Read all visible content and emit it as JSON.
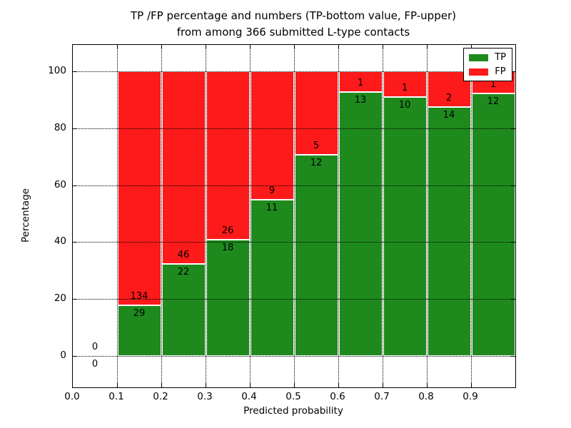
{
  "figure": {
    "title_line1": "TP /FP percentage and numbers (TP-bottom value, FP-upper)",
    "title_line2": "from among 366 submitted L-type contacts"
  },
  "chart_data": {
    "type": "bar",
    "stacked": true,
    "title": "TP /FP percentage and numbers (TP-bottom value, FP-upper) from among 366 submitted L-type contacts",
    "xlabel": "Predicted probability",
    "ylabel": "Percentage",
    "xlim": [
      0.0,
      1.0
    ],
    "ylim": [
      -11,
      109
    ],
    "grid": true,
    "legend_position": "upper right",
    "x_tick_labels": [
      "0.0",
      "0.1",
      "0.2",
      "0.3",
      "0.4",
      "0.5",
      "0.6",
      "0.7",
      "0.8",
      "0.9"
    ],
    "y_tick_labels": [
      "0",
      "20",
      "40",
      "60",
      "80",
      "100"
    ],
    "colors": {
      "tp": "#1e8a1e",
      "fp": "#fc1a1a",
      "grid": "#000000",
      "bar_edge": "#ffffff"
    },
    "legend": [
      {
        "label": "TP",
        "color": "#1e8a1e"
      },
      {
        "label": "FP",
        "color": "#fc1a1a"
      }
    ],
    "total_contacts": 366,
    "bins": [
      {
        "range": [
          0.0,
          0.1
        ],
        "tp": 0,
        "fp": 0,
        "tp_pct": 0.0,
        "fp_pct": 0.0
      },
      {
        "range": [
          0.1,
          0.2
        ],
        "tp": 29,
        "fp": 134,
        "tp_pct": 17.79,
        "fp_pct": 82.21
      },
      {
        "range": [
          0.2,
          0.3
        ],
        "tp": 22,
        "fp": 46,
        "tp_pct": 32.35,
        "fp_pct": 67.65
      },
      {
        "range": [
          0.3,
          0.4
        ],
        "tp": 18,
        "fp": 26,
        "tp_pct": 40.91,
        "fp_pct": 59.09
      },
      {
        "range": [
          0.4,
          0.5
        ],
        "tp": 11,
        "fp": 9,
        "tp_pct": 55.0,
        "fp_pct": 45.0
      },
      {
        "range": [
          0.5,
          0.6
        ],
        "tp": 12,
        "fp": 5,
        "tp_pct": 70.59,
        "fp_pct": 29.41
      },
      {
        "range": [
          0.6,
          0.7
        ],
        "tp": 13,
        "fp": 1,
        "tp_pct": 92.86,
        "fp_pct": 7.14
      },
      {
        "range": [
          0.7,
          0.8
        ],
        "tp": 10,
        "fp": 1,
        "tp_pct": 90.91,
        "fp_pct": 9.09
      },
      {
        "range": [
          0.8,
          0.9
        ],
        "tp": 14,
        "fp": 2,
        "tp_pct": 87.5,
        "fp_pct": 12.5
      },
      {
        "range": [
          0.9,
          1.0
        ],
        "tp": 12,
        "fp": 1,
        "tp_pct": 92.31,
        "fp_pct": 7.69
      }
    ]
  }
}
